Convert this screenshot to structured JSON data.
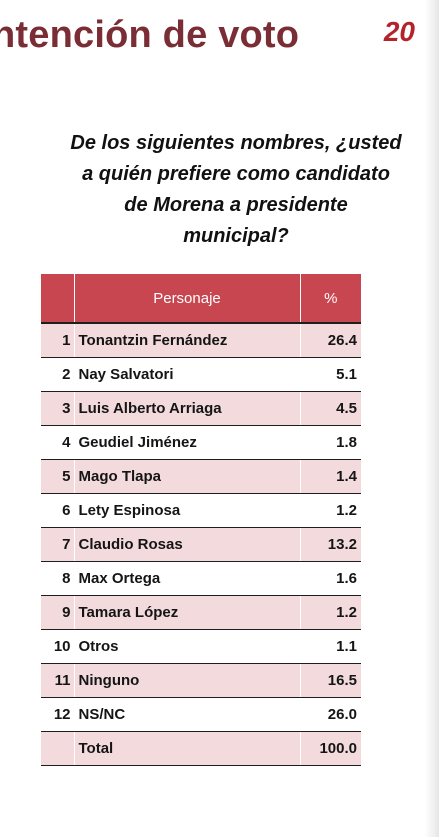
{
  "header": {
    "title": "ntención de voto",
    "page_number": "20"
  },
  "question": {
    "line1": "De los siguientes nombres, ¿usted",
    "line2": "a quién prefiere como candidato",
    "line3": "de Morena a presidente",
    "line4": "municipal?"
  },
  "table": {
    "headers": {
      "number": "",
      "name": "Personaje",
      "percent": "%"
    },
    "rows": [
      {
        "num": "1",
        "name": "Tonantzin Fernández",
        "pct": "26.4",
        "shaded": true
      },
      {
        "num": "2",
        "name": "Nay Salvatori",
        "pct": "5.1",
        "shaded": false
      },
      {
        "num": "3",
        "name": "Luis Alberto Arriaga",
        "pct": "4.5",
        "shaded": true
      },
      {
        "num": "4",
        "name": "Geudiel Jiménez",
        "pct": "1.8",
        "shaded": false
      },
      {
        "num": "5",
        "name": "Mago Tlapa",
        "pct": "1.4",
        "shaded": true
      },
      {
        "num": "6",
        "name": "Lety Espinosa",
        "pct": "1.2",
        "shaded": false
      },
      {
        "num": "7",
        "name": "Claudio Rosas",
        "pct": "13.2",
        "shaded": true
      },
      {
        "num": "8",
        "name": "Max Ortega",
        "pct": "1.6",
        "shaded": false
      },
      {
        "num": "9",
        "name": "Tamara López",
        "pct": "1.2",
        "shaded": true
      },
      {
        "num": "10",
        "name": "Otros",
        "pct": "1.1",
        "shaded": false
      },
      {
        "num": "11",
        "name": "Ninguno",
        "pct": "16.5",
        "shaded": true
      },
      {
        "num": "12",
        "name": "NS/NC",
        "pct": "26.0",
        "shaded": false
      },
      {
        "num": "",
        "name": "Total",
        "pct": "100.0",
        "shaded": true
      }
    ]
  },
  "colors": {
    "title": "#7a2d34",
    "page_number": "#b3232c",
    "header_fill": "#c84650",
    "row_shade": "#f3dbdd"
  }
}
